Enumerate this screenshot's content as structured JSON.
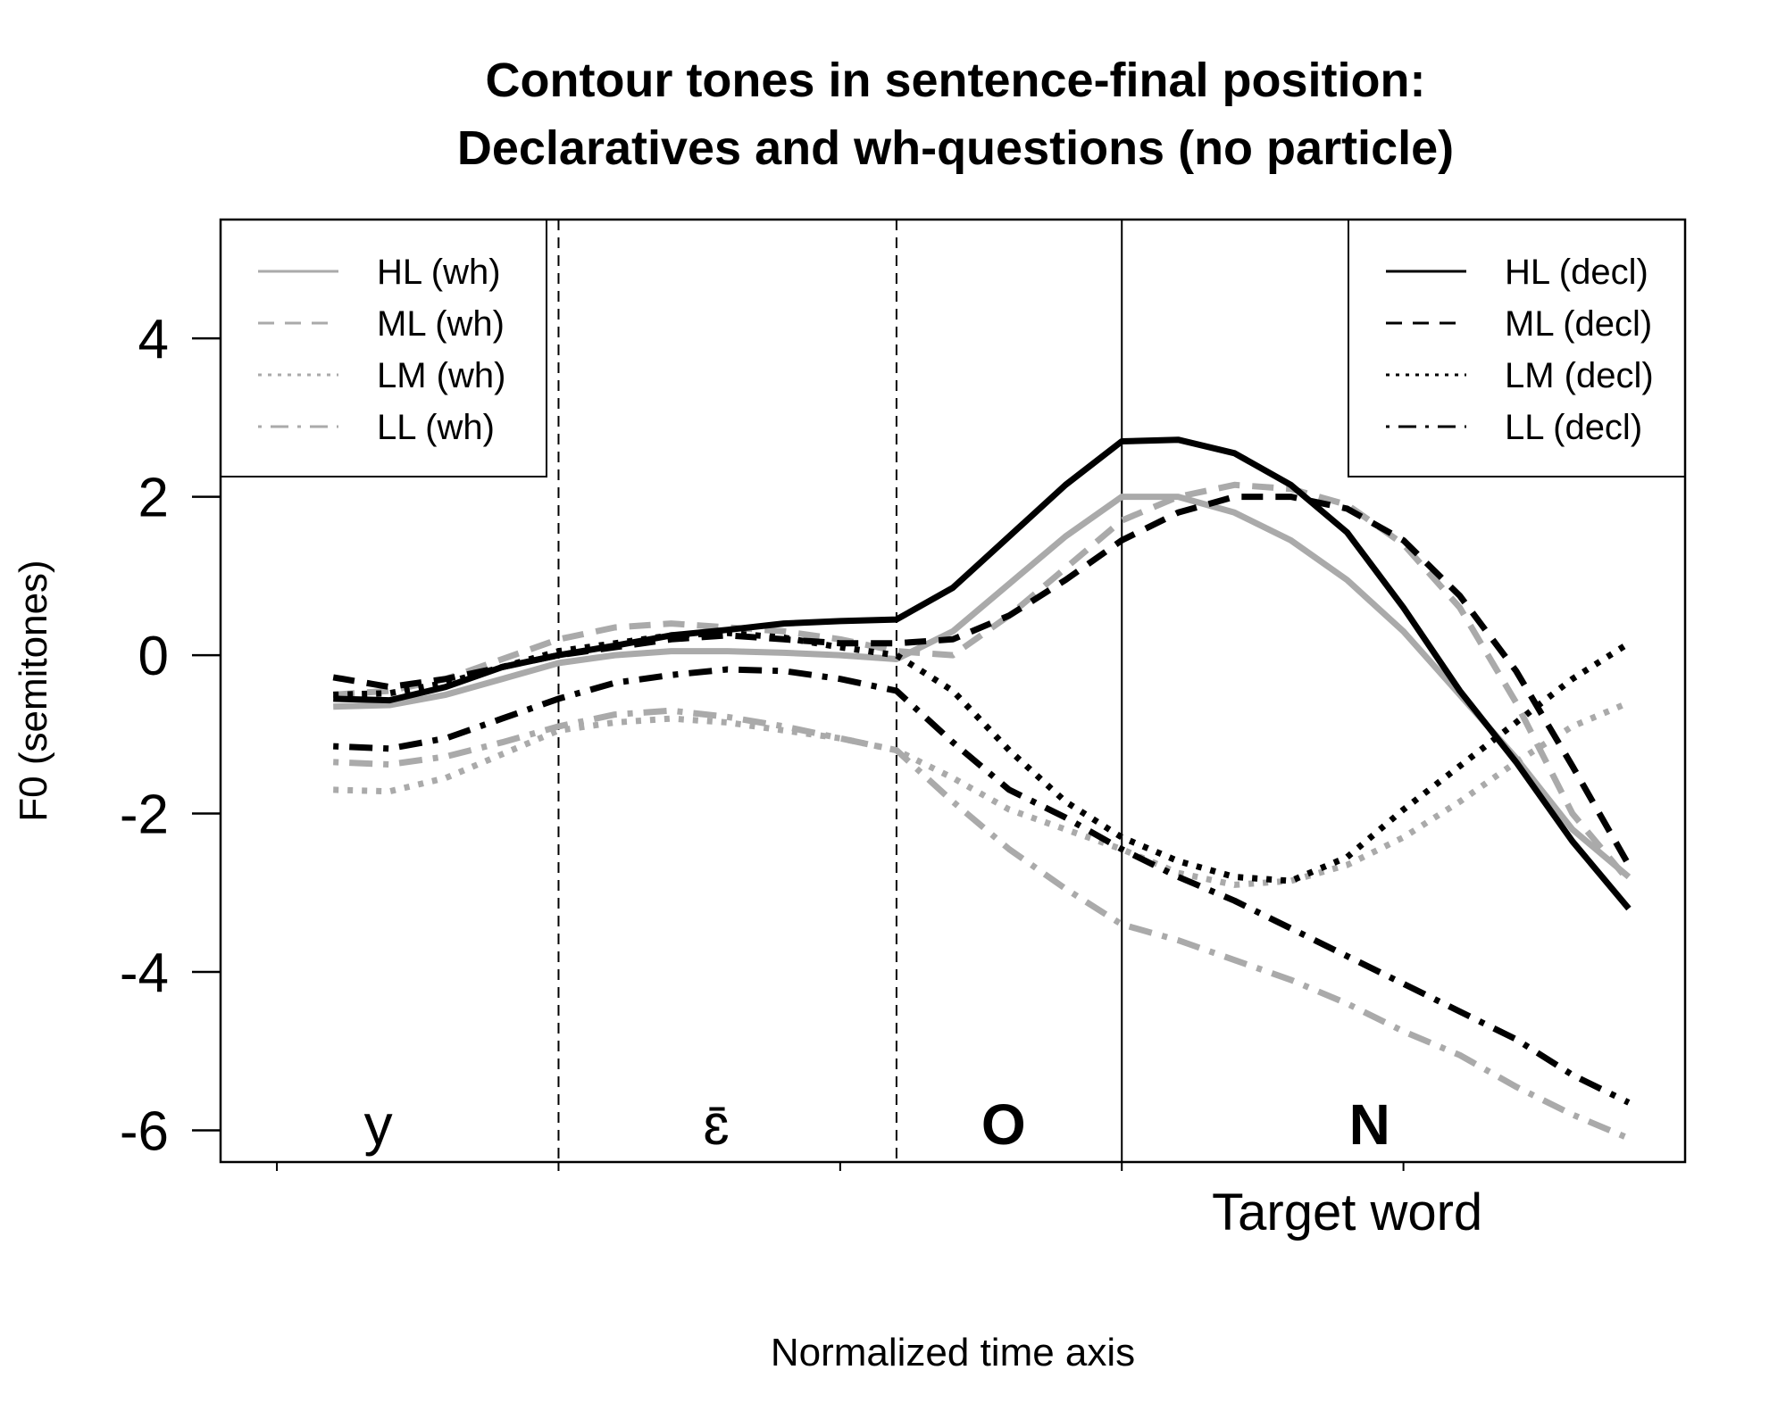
{
  "chart_data": {
    "type": "line",
    "title": "Contour tones in sentence-final position:",
    "subtitle": "Declaratives and wh-questions (no particle)",
    "xlabel": "Normalized time axis",
    "ylabel": "F0 (semitones)",
    "ylim": [
      -6.4,
      5.5
    ],
    "xlim": [
      0.05,
      1.35
    ],
    "yticks": [
      4,
      2,
      0,
      -2,
      -4,
      -6
    ],
    "ytick_labels": [
      "4",
      "2",
      "0",
      "-2",
      "-4",
      "-6"
    ],
    "grid": false,
    "segments": [
      {
        "label": "y",
        "x": 0.19,
        "bold": false
      },
      {
        "label": "ɛ̄",
        "x": 0.49,
        "bold": false
      },
      {
        "label": "O",
        "x": 0.745,
        "bold": true
      },
      {
        "label": "N",
        "x": 1.07,
        "bold": true
      }
    ],
    "boundaries": [
      {
        "x": 0.35,
        "style": "dashed"
      },
      {
        "x": 0.65,
        "style": "dashed"
      },
      {
        "x": 0.85,
        "style": "solid"
      }
    ],
    "target_label": {
      "text": "Target word",
      "x": 0.93
    },
    "x_minor_ticks": [
      0.1,
      0.35,
      0.6,
      0.85,
      1.1
    ],
    "legends": [
      {
        "position": "top-left",
        "entries": [
          {
            "label": "HL (wh)",
            "color": "#aaaaaa",
            "dash": "solid"
          },
          {
            "label": "ML (wh)",
            "color": "#aaaaaa",
            "dash": "dashed"
          },
          {
            "label": "LM (wh)",
            "color": "#aaaaaa",
            "dash": "dotted"
          },
          {
            "label": "LL (wh)",
            "color": "#aaaaaa",
            "dash": "dotdash"
          }
        ]
      },
      {
        "position": "top-right",
        "entries": [
          {
            "label": "HL (decl)",
            "color": "#000000",
            "dash": "solid"
          },
          {
            "label": "ML (decl)",
            "color": "#000000",
            "dash": "dashed"
          },
          {
            "label": "LM (decl)",
            "color": "#000000",
            "dash": "dotted"
          },
          {
            "label": "LL (decl)",
            "color": "#000000",
            "dash": "dotdash"
          }
        ]
      }
    ],
    "x": [
      0.15,
      0.2,
      0.25,
      0.3,
      0.35,
      0.4,
      0.45,
      0.5,
      0.55,
      0.6,
      0.65,
      0.7,
      0.75,
      0.8,
      0.85,
      0.9,
      0.95,
      1.0,
      1.05,
      1.1,
      1.15,
      1.2,
      1.25,
      1.3
    ],
    "series": [
      {
        "name": "HL (wh)",
        "color": "#aaaaaa",
        "dash": "solid",
        "values": [
          -0.65,
          -0.63,
          -0.5,
          -0.3,
          -0.1,
          0.0,
          0.05,
          0.05,
          0.03,
          0.0,
          -0.05,
          0.3,
          0.9,
          1.5,
          2.0,
          2.0,
          1.8,
          1.45,
          0.95,
          0.3,
          -0.5,
          -1.3,
          -2.2,
          -2.8
        ]
      },
      {
        "name": "ML (wh)",
        "color": "#aaaaaa",
        "dash": "dashed",
        "values": [
          -0.5,
          -0.45,
          -0.3,
          -0.05,
          0.2,
          0.35,
          0.4,
          0.35,
          0.3,
          0.2,
          0.05,
          0.0,
          0.5,
          1.1,
          1.7,
          2.0,
          2.15,
          2.1,
          1.9,
          1.4,
          0.6,
          -0.6,
          -2.0,
          -2.85
        ]
      },
      {
        "name": "LM (wh)",
        "color": "#aaaaaa",
        "dash": "dotted",
        "values": [
          -1.7,
          -1.72,
          -1.55,
          -1.25,
          -0.95,
          -0.85,
          -0.8,
          -0.85,
          -0.95,
          -1.05,
          -1.2,
          -1.55,
          -1.95,
          -2.2,
          -2.45,
          -2.75,
          -2.9,
          -2.85,
          -2.65,
          -2.3,
          -1.85,
          -1.35,
          -0.9,
          -0.6
        ]
      },
      {
        "name": "LL (wh)",
        "color": "#aaaaaa",
        "dash": "dotdash",
        "values": [
          -1.35,
          -1.38,
          -1.28,
          -1.1,
          -0.9,
          -0.75,
          -0.7,
          -0.78,
          -0.9,
          -1.05,
          -1.2,
          -1.85,
          -2.45,
          -2.95,
          -3.4,
          -3.6,
          -3.85,
          -4.1,
          -4.4,
          -4.75,
          -5.05,
          -5.45,
          -5.8,
          -6.1
        ]
      },
      {
        "name": "HL (decl)",
        "color": "#000000",
        "dash": "solid",
        "values": [
          -0.55,
          -0.57,
          -0.4,
          -0.15,
          0.0,
          0.12,
          0.25,
          0.32,
          0.4,
          0.43,
          0.45,
          0.85,
          1.5,
          2.15,
          2.7,
          2.72,
          2.55,
          2.15,
          1.55,
          0.6,
          -0.45,
          -1.35,
          -2.35,
          -3.2
        ]
      },
      {
        "name": "ML (decl)",
        "color": "#000000",
        "dash": "dashed",
        "values": [
          -0.28,
          -0.4,
          -0.3,
          -0.15,
          0.0,
          0.1,
          0.2,
          0.25,
          0.2,
          0.15,
          0.15,
          0.2,
          0.5,
          0.95,
          1.45,
          1.8,
          2.0,
          2.0,
          1.85,
          1.45,
          0.75,
          -0.2,
          -1.4,
          -2.65
        ]
      },
      {
        "name": "LM (decl)",
        "color": "#000000",
        "dash": "dotted",
        "values": [
          -0.5,
          -0.48,
          -0.35,
          -0.15,
          0.05,
          0.15,
          0.25,
          0.28,
          0.22,
          0.1,
          0.0,
          -0.45,
          -1.2,
          -1.85,
          -2.3,
          -2.6,
          -2.8,
          -2.85,
          -2.55,
          -1.95,
          -1.4,
          -0.85,
          -0.3,
          0.15
        ]
      },
      {
        "name": "LL (decl)",
        "color": "#000000",
        "dash": "dotdash",
        "values": [
          -1.15,
          -1.18,
          -1.05,
          -0.8,
          -0.55,
          -0.35,
          -0.25,
          -0.18,
          -0.2,
          -0.3,
          -0.45,
          -1.1,
          -1.7,
          -2.05,
          -2.45,
          -2.8,
          -3.1,
          -3.45,
          -3.8,
          -4.15,
          -4.5,
          -4.85,
          -5.3,
          -5.65
        ]
      }
    ]
  }
}
